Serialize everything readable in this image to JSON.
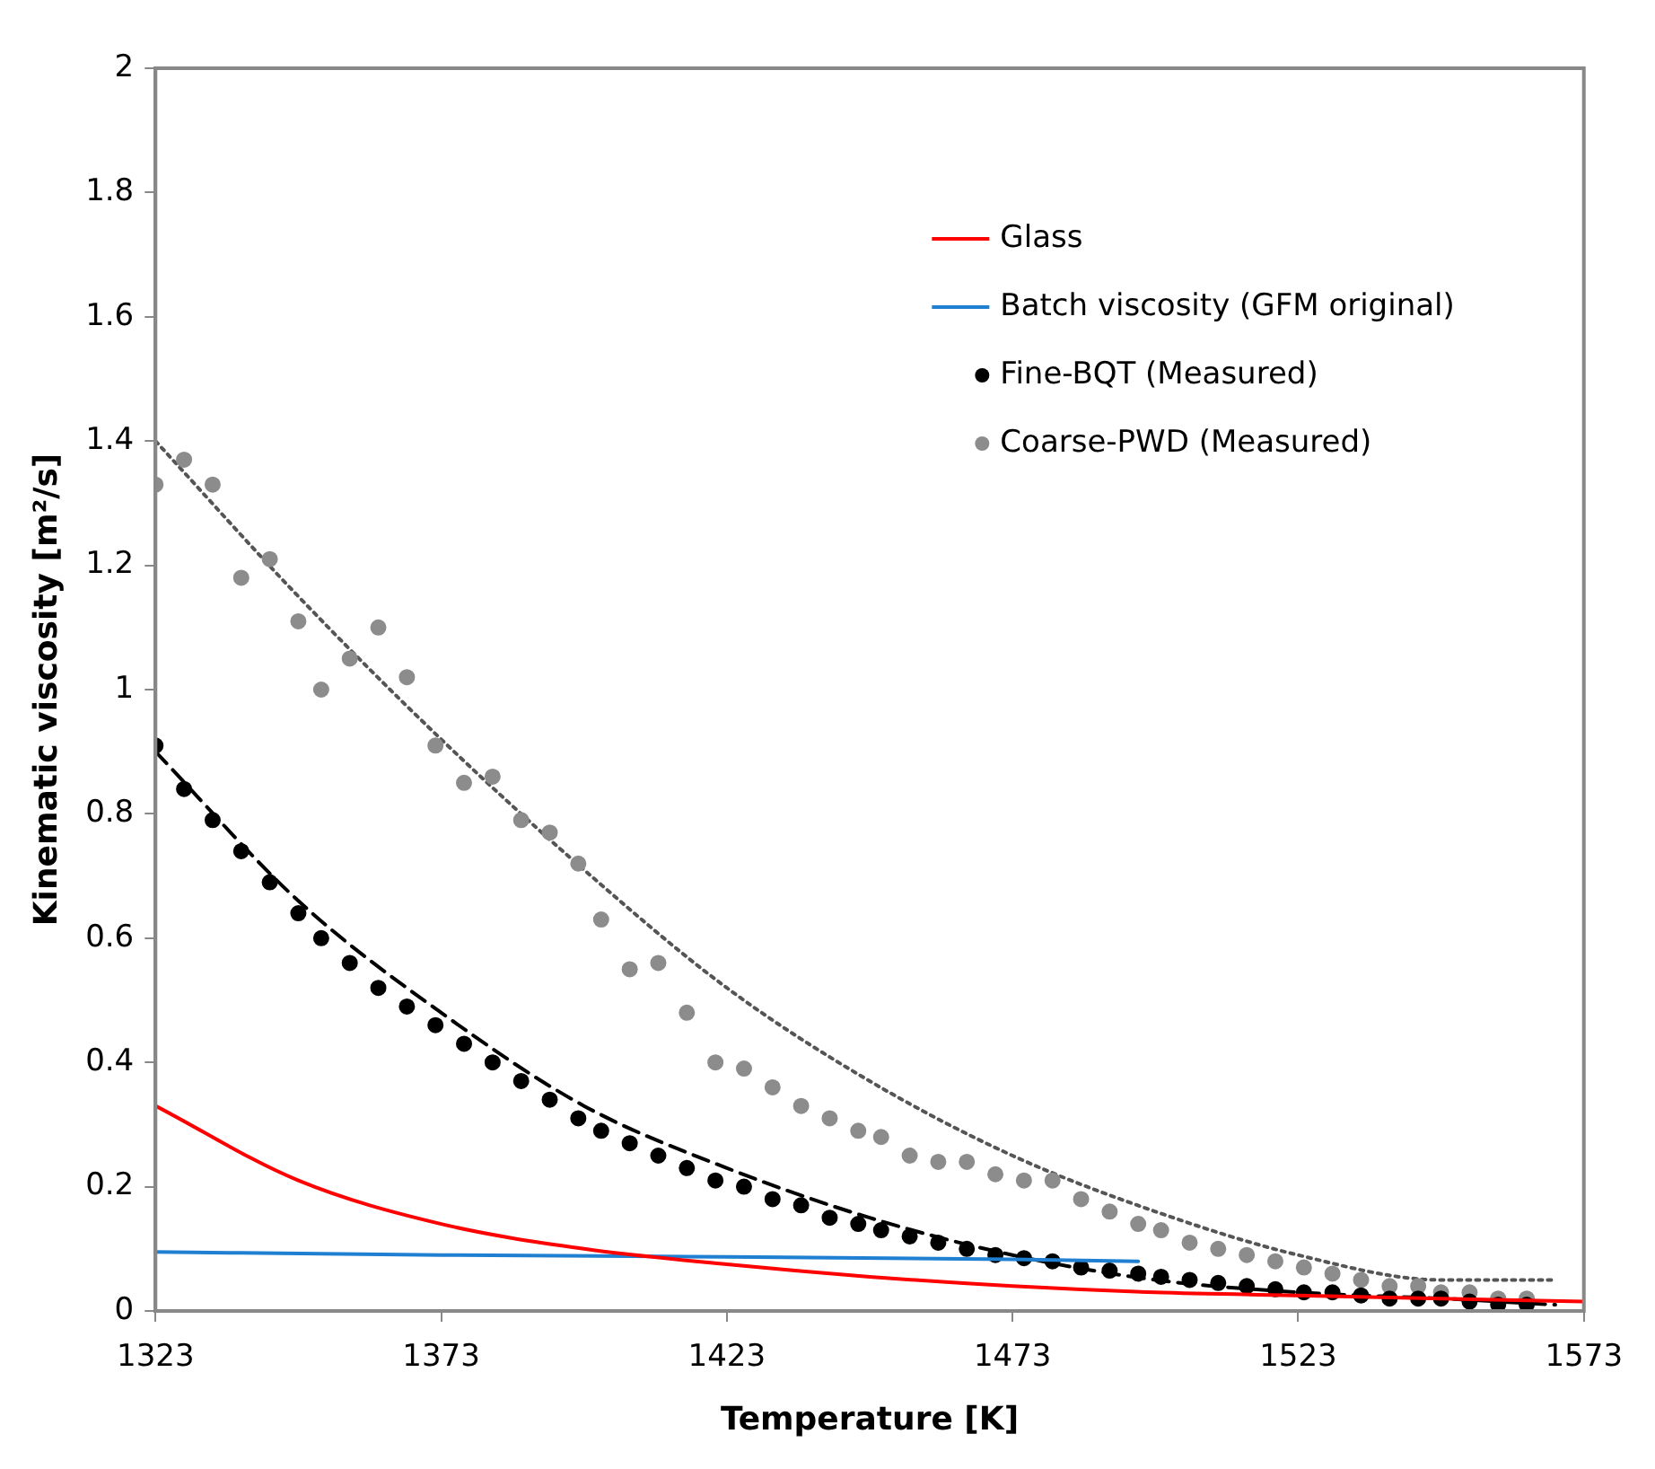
{
  "chart_data": {
    "type": "line",
    "xlabel": "Temperature [K]",
    "ylabel": "Kinematic viscosity [m²/s]",
    "xlim": [
      1323,
      1573
    ],
    "xticks": [
      1323,
      1373,
      1423,
      1473,
      1523,
      1573
    ],
    "ylim": [
      0,
      2
    ],
    "yticks": [
      0,
      {
        "value": 0.2,
        "label": "0.2"
      },
      {
        "value": 0.4,
        "label": "0.4"
      },
      {
        "value": 0.6,
        "label": "0.6"
      },
      {
        "value": 0.8,
        "label": "0.8"
      },
      1,
      {
        "value": 1.2,
        "label": "1.2"
      },
      {
        "value": 1.4,
        "label": "1.4"
      },
      {
        "value": 1.6,
        "label": "1.6"
      },
      {
        "value": 1.8,
        "label": "1.8"
      },
      2
    ],
    "grid": false,
    "legend": "top right",
    "series": [
      {
        "name": "Glass",
        "color": "#ff0000",
        "line_style": "solid",
        "marker": "none",
        "x": [
          1323,
          1348,
          1373,
          1398,
          1423,
          1448,
          1473,
          1498,
          1523,
          1548,
          1573
        ],
        "values": [
          0.33,
          0.21,
          0.14,
          0.1,
          0.075,
          0.055,
          0.04,
          0.03,
          0.025,
          0.02,
          0.015
        ]
      },
      {
        "name": "Batch viscosity (GFM original)",
        "color": "#1f7fd0",
        "line_style": "solid",
        "marker": "none",
        "x": [
          1323,
          1373,
          1423,
          1473,
          1495
        ],
        "values": [
          0.095,
          0.09,
          0.087,
          0.083,
          0.08
        ]
      },
      {
        "name": "Fine-BQT (Measured)",
        "type": "scatter",
        "color": "#000000",
        "marker": "circle",
        "x": [
          1323,
          1328,
          1333,
          1338,
          1343,
          1348,
          1352,
          1357,
          1362,
          1367,
          1372,
          1377,
          1382,
          1387,
          1392,
          1397,
          1401,
          1406,
          1411,
          1416,
          1421,
          1426,
          1431,
          1436,
          1441,
          1446,
          1450,
          1455,
          1460,
          1465,
          1470,
          1475,
          1480,
          1485,
          1490,
          1495,
          1499,
          1504,
          1509,
          1514,
          1519,
          1524,
          1529,
          1534,
          1539,
          1544,
          1548,
          1553,
          1558,
          1563
        ],
        "values": [
          0.91,
          0.84,
          0.79,
          0.74,
          0.69,
          0.64,
          0.6,
          0.56,
          0.52,
          0.49,
          0.46,
          0.43,
          0.4,
          0.37,
          0.34,
          0.31,
          0.29,
          0.27,
          0.25,
          0.23,
          0.21,
          0.2,
          0.18,
          0.17,
          0.15,
          0.14,
          0.13,
          0.12,
          0.11,
          0.1,
          0.09,
          0.085,
          0.08,
          0.07,
          0.065,
          0.06,
          0.055,
          0.05,
          0.045,
          0.04,
          0.035,
          0.03,
          0.03,
          0.025,
          0.02,
          0.02,
          0.02,
          0.015,
          0.01,
          0.01
        ]
      },
      {
        "name": "Coarse-PWD (Measured)",
        "type": "scatter",
        "color": "#8c8c8c",
        "marker": "circle",
        "x": [
          1323,
          1328,
          1333,
          1338,
          1343,
          1348,
          1352,
          1357,
          1362,
          1367,
          1372,
          1377,
          1382,
          1387,
          1392,
          1397,
          1401,
          1406,
          1411,
          1416,
          1421,
          1426,
          1431,
          1436,
          1441,
          1446,
          1450,
          1455,
          1460,
          1465,
          1470,
          1475,
          1480,
          1485,
          1490,
          1495,
          1499,
          1504,
          1509,
          1514,
          1519,
          1524,
          1529,
          1534,
          1539,
          1544,
          1548,
          1553,
          1558,
          1563
        ],
        "values": [
          1.33,
          1.37,
          1.33,
          1.18,
          1.21,
          1.11,
          1.0,
          1.05,
          1.1,
          1.02,
          0.91,
          0.85,
          0.86,
          0.79,
          0.77,
          0.72,
          0.63,
          0.55,
          0.56,
          0.48,
          0.4,
          0.39,
          0.36,
          0.33,
          0.31,
          0.29,
          0.28,
          0.25,
          0.24,
          0.24,
          0.22,
          0.21,
          0.21,
          0.18,
          0.16,
          0.14,
          0.13,
          0.11,
          0.1,
          0.09,
          0.08,
          0.07,
          0.06,
          0.05,
          0.04,
          0.04,
          0.03,
          0.03,
          0.02,
          0.02
        ]
      },
      {
        "color": "#000000",
        "line_style": "dashed",
        "marker": "none",
        "x": [
          1323,
          1348,
          1373,
          1398,
          1423,
          1448,
          1473,
          1498,
          1523,
          1548,
          1568
        ],
        "values": [
          0.9,
          0.66,
          0.48,
          0.33,
          0.23,
          0.15,
          0.09,
          0.05,
          0.03,
          0.02,
          0.01
        ]
      },
      {
        "color": "#555555",
        "line_style": "dotted",
        "marker": "none",
        "x": [
          1323,
          1348,
          1373,
          1398,
          1423,
          1448,
          1473,
          1498,
          1523,
          1548,
          1568
        ],
        "values": [
          1.4,
          1.15,
          0.92,
          0.71,
          0.52,
          0.37,
          0.25,
          0.16,
          0.09,
          0.05,
          0.05
        ]
      }
    ]
  }
}
